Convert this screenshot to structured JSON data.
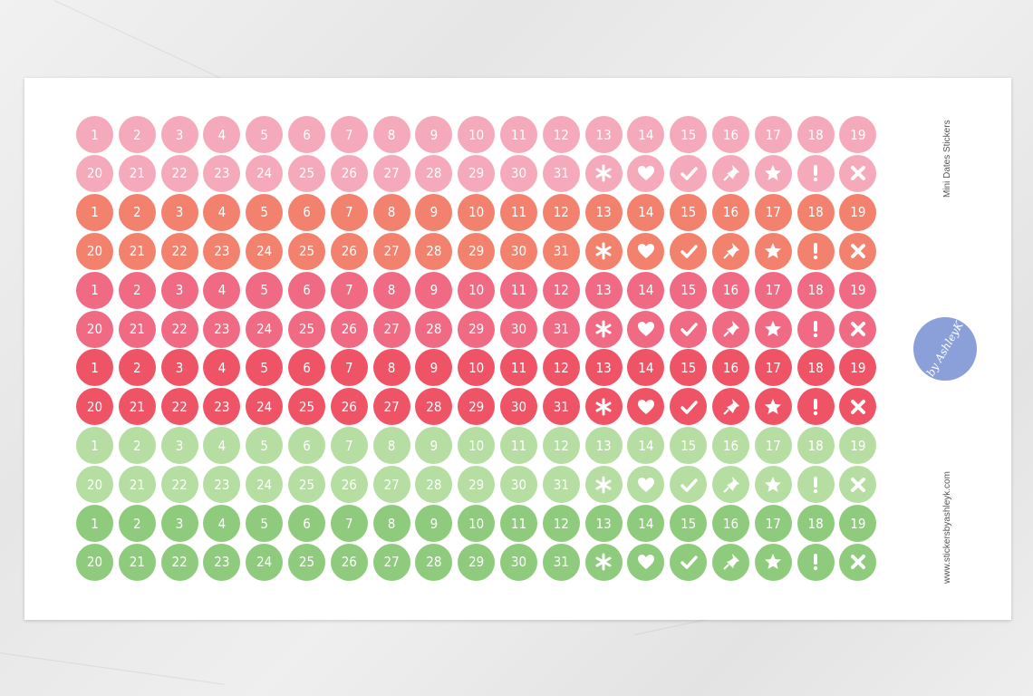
{
  "sheet": {
    "title": "Mini Dates Stickers",
    "website": "www.stickersbyashleyk.com",
    "logo_text": "by AshleyK"
  },
  "row_a": [
    "1",
    "2",
    "3",
    "4",
    "5",
    "6",
    "7",
    "8",
    "9",
    "10",
    "11",
    "12",
    "13",
    "14",
    "15",
    "16",
    "17",
    "18",
    "19"
  ],
  "row_b": [
    "20",
    "21",
    "22",
    "23",
    "24",
    "25",
    "26",
    "27",
    "28",
    "29",
    "30",
    "31"
  ],
  "row_b_icons": [
    "asterisk-icon",
    "heart-icon",
    "check-icon",
    "pushpin-icon",
    "star-icon",
    "exclamation-icon",
    "x-icon"
  ],
  "colors": [
    "#f5aabb",
    "#f2826e",
    "#f06a84",
    "#ef5466",
    "#b6dda2",
    "#8fcb7c"
  ],
  "background_color": "#ececec"
}
